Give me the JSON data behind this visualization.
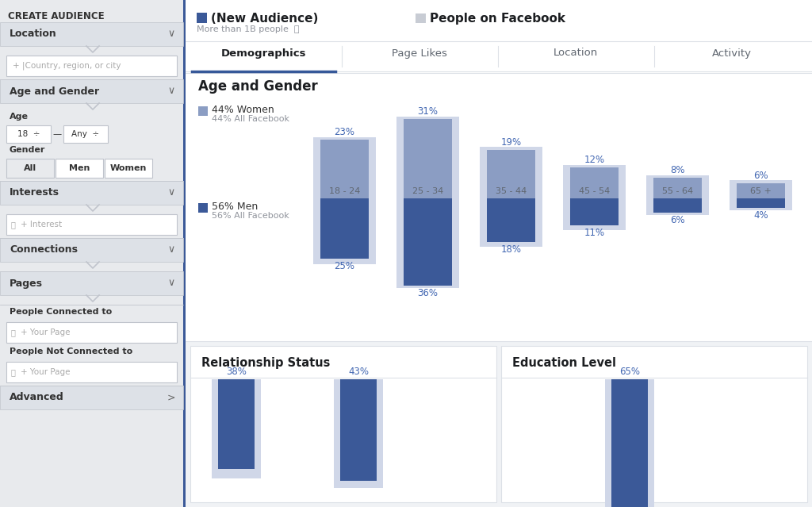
{
  "bg_color": "#f0f2f5",
  "sidebar_color": "#e8eaed",
  "sidebar_border_color": "#3b5998",
  "title_text": "CREATE AUDIENCE",
  "tabs": [
    "Demographics",
    "Page Likes",
    "Location",
    "Activity"
  ],
  "legend_new": "(New Audience)",
  "legend_fb": "People on Facebook",
  "subtitle": "More than 1B people",
  "age_gender_title": "Age and Gender",
  "women_label": "44% Women",
  "women_sub": "44% All Facebook",
  "men_label": "56% Men",
  "men_sub": "56% All Facebook",
  "age_groups": [
    "18 - 24",
    "25 - 34",
    "35 - 44",
    "45 - 54",
    "55 - 64",
    "65 +"
  ],
  "women_pcts": [
    23,
    31,
    19,
    12,
    8,
    6
  ],
  "men_pcts": [
    25,
    36,
    18,
    11,
    6,
    4
  ],
  "women_fb_pcts": [
    24,
    32,
    20,
    13,
    9,
    7
  ],
  "men_fb_pcts": [
    27,
    37,
    20,
    13,
    7,
    5
  ],
  "color_new_women": "#8b9dc3",
  "color_fb": "#d0d7e8",
  "color_new_men": "#3b5998",
  "color_pct_text": "#4267b2",
  "rel_status_title": "Relationship Status",
  "rel_pcts": [
    38,
    43
  ],
  "rel_fb_pcts": [
    42,
    46
  ],
  "edu_title": "Education Level",
  "edu_pcts": [
    65
  ],
  "edu_fb_pcts": [
    68
  ],
  "dark_blue": "#3b5998",
  "light_blue": "#8b9dc3",
  "header_line_color": "#dde1e7",
  "sidebar_section_color": "#dde1e7",
  "tab_active_color": "#365899",
  "text_dark": "#1c1e21",
  "text_gray": "#606770",
  "text_light": "#90949c"
}
